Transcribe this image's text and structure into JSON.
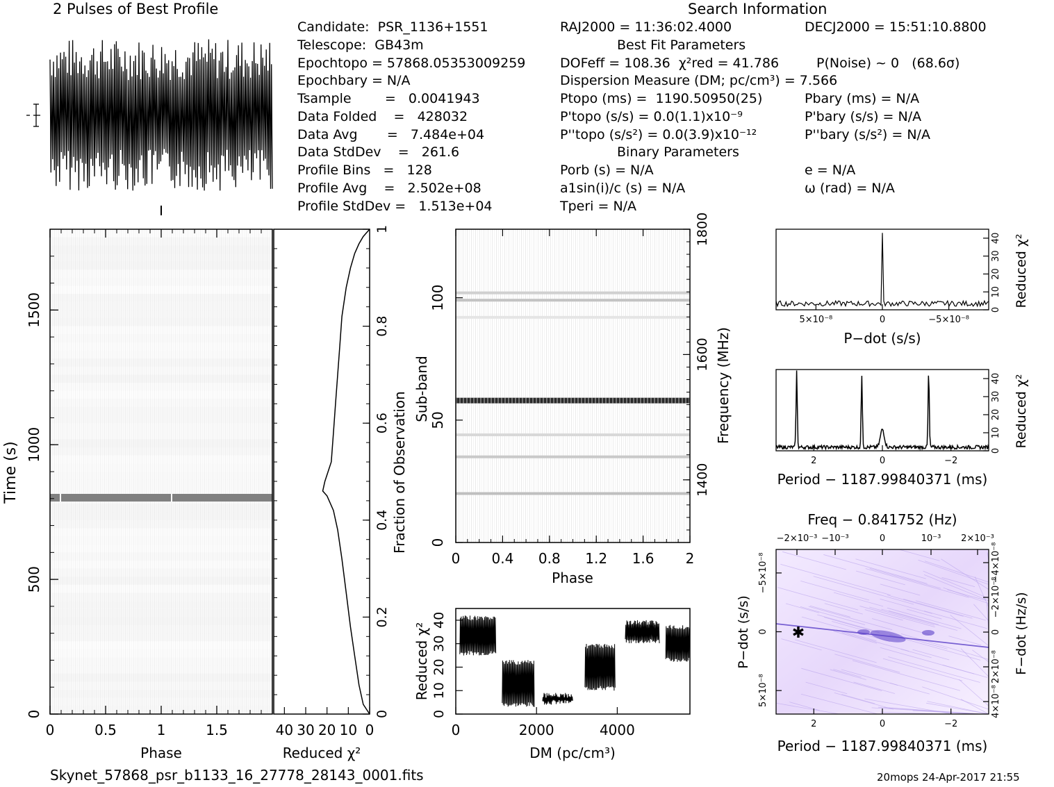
{
  "titles": {
    "profile": "2 Pulses of Best Profile",
    "search": "Search Information",
    "best_fit": "Best Fit Parameters",
    "binary": "Binary Parameters"
  },
  "info_left": {
    "candidate": "Candidate:  PSR_1136+1551",
    "telescope": "Telescope:  GB43m",
    "epoch_topo": "Epochtopo = 57868.05353009259",
    "epoch_bary": "Epochbary = N/A",
    "t_sample": "Tsample        =   0.0041943",
    "data_folded": "Data Folded    =   428032",
    "data_avg": "Data Avg       =   7.484e+04",
    "data_stddev": "Data StdDev    =   261.6",
    "profile_bins": "Profile Bins   =   128",
    "profile_avg": "Profile Avg    =   2.502e+08",
    "profile_stddev": "Profile StdDev =   1.513e+04"
  },
  "info_mid": {
    "ra": "RAJ2000 = 11:36:02.4000",
    "dof": "DOFeff = 108.36  χ²red = 41.786",
    "dm": "Dispersion Measure (DM; pc/cm³) = 7.566",
    "p_topo": "Ptopo (ms) =  1190.50950(25)",
    "pd_topo": "P'topo (s/s) = 0.0(1.1)x10⁻⁹",
    "pdd_topo": "P''topo (s/s²) = 0.0(3.9)x10⁻¹²",
    "p_orb": "Porb (s) = N/A",
    "a1sini": "a1sin(i)/c (s) = N/A",
    "t_peri": "Tperi = N/A"
  },
  "info_right": {
    "dec": "DECJ2000 = 15:51:10.8800",
    "p_noise": "P(Noise) ~ 0   (68.6σ)",
    "p_bary": "Pbary (ms) = N/A",
    "pd_bary": "P'bary (s/s) = N/A",
    "pdd_bary": "P''bary (s/s²) = N/A",
    "e": "e = N/A",
    "omega": "ω (rad) = N/A"
  },
  "footer": {
    "filename": "Skynet_57868_psr_b1133_16_27778_28143_0001.fits",
    "stamp": "20mops 24-Apr-2017 21:55"
  },
  "axes": {
    "phase": "Phase",
    "time": "Time (s)",
    "reduced_chi2": "Reduced χ²",
    "fraction": "Fraction of Observation",
    "subband": "Sub-band",
    "frequency": "Frequency (MHz)",
    "dm": "DM (pc/cm³)",
    "pdot": "P−dot (s/s)",
    "period": "Period − 1187.99840371 (ms)",
    "freq_top": "Freq − 0.841752 (Hz)",
    "fdot": "F−dot (Hz/s)"
  },
  "colors": {
    "ink": "#000000",
    "gray_band": "#808080",
    "ppdot_base": "#f2e6ff",
    "ppdot_feature": "#6a4fd8"
  },
  "chart_data": [
    {
      "type": "line",
      "name": "profile",
      "title": "2 Pulses of Best Profile",
      "xlim": [
        0,
        2
      ],
      "pulses": 2,
      "bins_per_pulse": 128,
      "appearance": "noise-dominated oscillation, no distinct pulse"
    },
    {
      "type": "heatmap",
      "name": "time-phase",
      "xlabel": "Phase",
      "ylabel": "Time (s)",
      "xlim": [
        0,
        2
      ],
      "ylim": [
        0,
        1800
      ],
      "xticks": [
        "0",
        "0.5",
        "1",
        "1.5"
      ],
      "yticks": [
        "0",
        "500",
        "1000",
        "1500"
      ],
      "dark_band_time_s": 790
    },
    {
      "type": "line",
      "name": "cumulative-chi2",
      "xlabel": "Reduced χ²",
      "ylabel": "Fraction of Observation",
      "xlim": [
        45,
        0
      ],
      "ylim": [
        0,
        1
      ],
      "xticks": [
        "40",
        "30",
        "20",
        "10",
        "0"
      ],
      "yticks": [
        "0",
        "0.2",
        "0.4",
        "0.6",
        "0.8",
        "1"
      ],
      "points": [
        [
          0,
          0
        ],
        [
          3,
          0.02
        ],
        [
          5,
          0.06
        ],
        [
          7,
          0.12
        ],
        [
          9,
          0.18
        ],
        [
          11,
          0.25
        ],
        [
          13,
          0.32
        ],
        [
          15,
          0.38
        ],
        [
          17,
          0.42
        ],
        [
          20,
          0.45
        ],
        [
          22,
          0.46
        ],
        [
          21,
          0.48
        ],
        [
          18,
          0.52
        ],
        [
          17,
          0.58
        ],
        [
          16,
          0.64
        ],
        [
          15,
          0.7
        ],
        [
          14,
          0.76
        ],
        [
          13,
          0.82
        ],
        [
          11,
          0.88
        ],
        [
          9,
          0.92
        ],
        [
          7,
          0.95
        ],
        [
          5,
          0.97
        ],
        [
          3,
          0.985
        ],
        [
          0,
          1.0
        ]
      ]
    },
    {
      "type": "heatmap",
      "name": "subband-phase",
      "xlabel": "Phase",
      "ylabel": "Sub-band",
      "y2label": "Frequency (MHz)",
      "xlim": [
        0,
        2
      ],
      "ylim": [
        0,
        128
      ],
      "y2lim": [
        1300,
        1800
      ],
      "xticks": [
        "0",
        "0.4",
        "0.8",
        "1.2",
        "1.6",
        "2"
      ],
      "yticks": [
        "0",
        "50",
        "100"
      ],
      "y2ticks": [
        "1400",
        "1600",
        "1800"
      ],
      "bands": [
        {
          "subband": 20,
          "darkness": 0.3
        },
        {
          "subband": 35,
          "darkness": 0.25
        },
        {
          "subband": 44,
          "darkness": 0.18
        },
        {
          "subband": 58,
          "darkness": 0.95
        },
        {
          "subband": 92,
          "darkness": 0.12
        },
        {
          "subband": 99,
          "darkness": 0.28
        },
        {
          "subband": 102,
          "darkness": 0.22
        }
      ]
    },
    {
      "type": "line",
      "name": "dm-chi2",
      "xlabel": "DM (pc/cm³)",
      "ylabel": "Reduced χ²",
      "xlim": [
        0,
        5800
      ],
      "ylim": [
        0,
        45
      ],
      "xticks": [
        "0",
        "2000",
        "4000"
      ],
      "yticks": [
        "0",
        "10",
        "20",
        "30",
        "40"
      ],
      "segments": [
        {
          "x": [
            100,
            1000
          ],
          "lo": 25,
          "hi": 42
        },
        {
          "x": [
            1150,
            1950
          ],
          "lo": 3,
          "hi": 23
        },
        {
          "x": [
            2150,
            2900
          ],
          "lo": 4,
          "hi": 9
        },
        {
          "x": [
            3200,
            3950
          ],
          "lo": 10,
          "hi": 30
        },
        {
          "x": [
            4200,
            5050
          ],
          "lo": 30,
          "hi": 40
        },
        {
          "x": [
            5200,
            5800
          ],
          "lo": 22,
          "hi": 38
        }
      ]
    },
    {
      "type": "line",
      "name": "pdot-chi2",
      "xlabel": "P−dot (s/s)",
      "ylabel": "Reduced χ²",
      "xlim": [
        8e-09,
        -8e-09
      ],
      "ylim": [
        0,
        45
      ],
      "xticks": [
        "5×10⁻⁸",
        "0",
        "−5×10⁻⁸"
      ],
      "yticks": [
        "0",
        "10",
        "20",
        "30",
        "40"
      ],
      "peaks": [
        {
          "x": 0,
          "y": 43
        }
      ],
      "baseline": 2
    },
    {
      "type": "line",
      "name": "period-chi2",
      "xlabel": "Period − 1187.99840371 (ms)",
      "ylabel": "Reduced χ²",
      "xlim": [
        3.1,
        -3.1
      ],
      "ylim": [
        0,
        45
      ],
      "xticks": [
        "2",
        "0",
        "−2"
      ],
      "yticks": [
        "0",
        "10",
        "20",
        "30",
        "40"
      ],
      "peaks": [
        {
          "x": 2.5,
          "y": 42
        },
        {
          "x": 0.6,
          "y": 40
        },
        {
          "x": 0.0,
          "y": 10
        },
        {
          "x": -1.35,
          "y": 42
        }
      ],
      "baseline": 1
    },
    {
      "type": "heatmap",
      "name": "period-pdot",
      "xlabel": "Period − 1187.99840371 (ms)",
      "ylabel": "P−dot (s/s)",
      "x2label": "Freq − 0.841752 (Hz)",
      "y2label": "F−dot (Hz/s)",
      "xlim": [
        3.1,
        -3.1
      ],
      "ylim": [
        7e-08,
        -7e-08
      ],
      "xticks": [
        "2",
        "0",
        "−2"
      ],
      "yticks": [
        "−5×10⁻⁸",
        "0",
        "5×10⁻⁸"
      ],
      "x2ticks": [
        "−2×10⁻³",
        "−10⁻³",
        "0",
        "10⁻³",
        "2×10⁻³"
      ],
      "y2ticks": [
        "4×10⁻⁸",
        "2×10⁻⁸",
        "0",
        "−2×10⁻⁸",
        "−4×10⁻⁸"
      ],
      "best_marker": {
        "x": 2.5,
        "y": 0
      }
    }
  ]
}
